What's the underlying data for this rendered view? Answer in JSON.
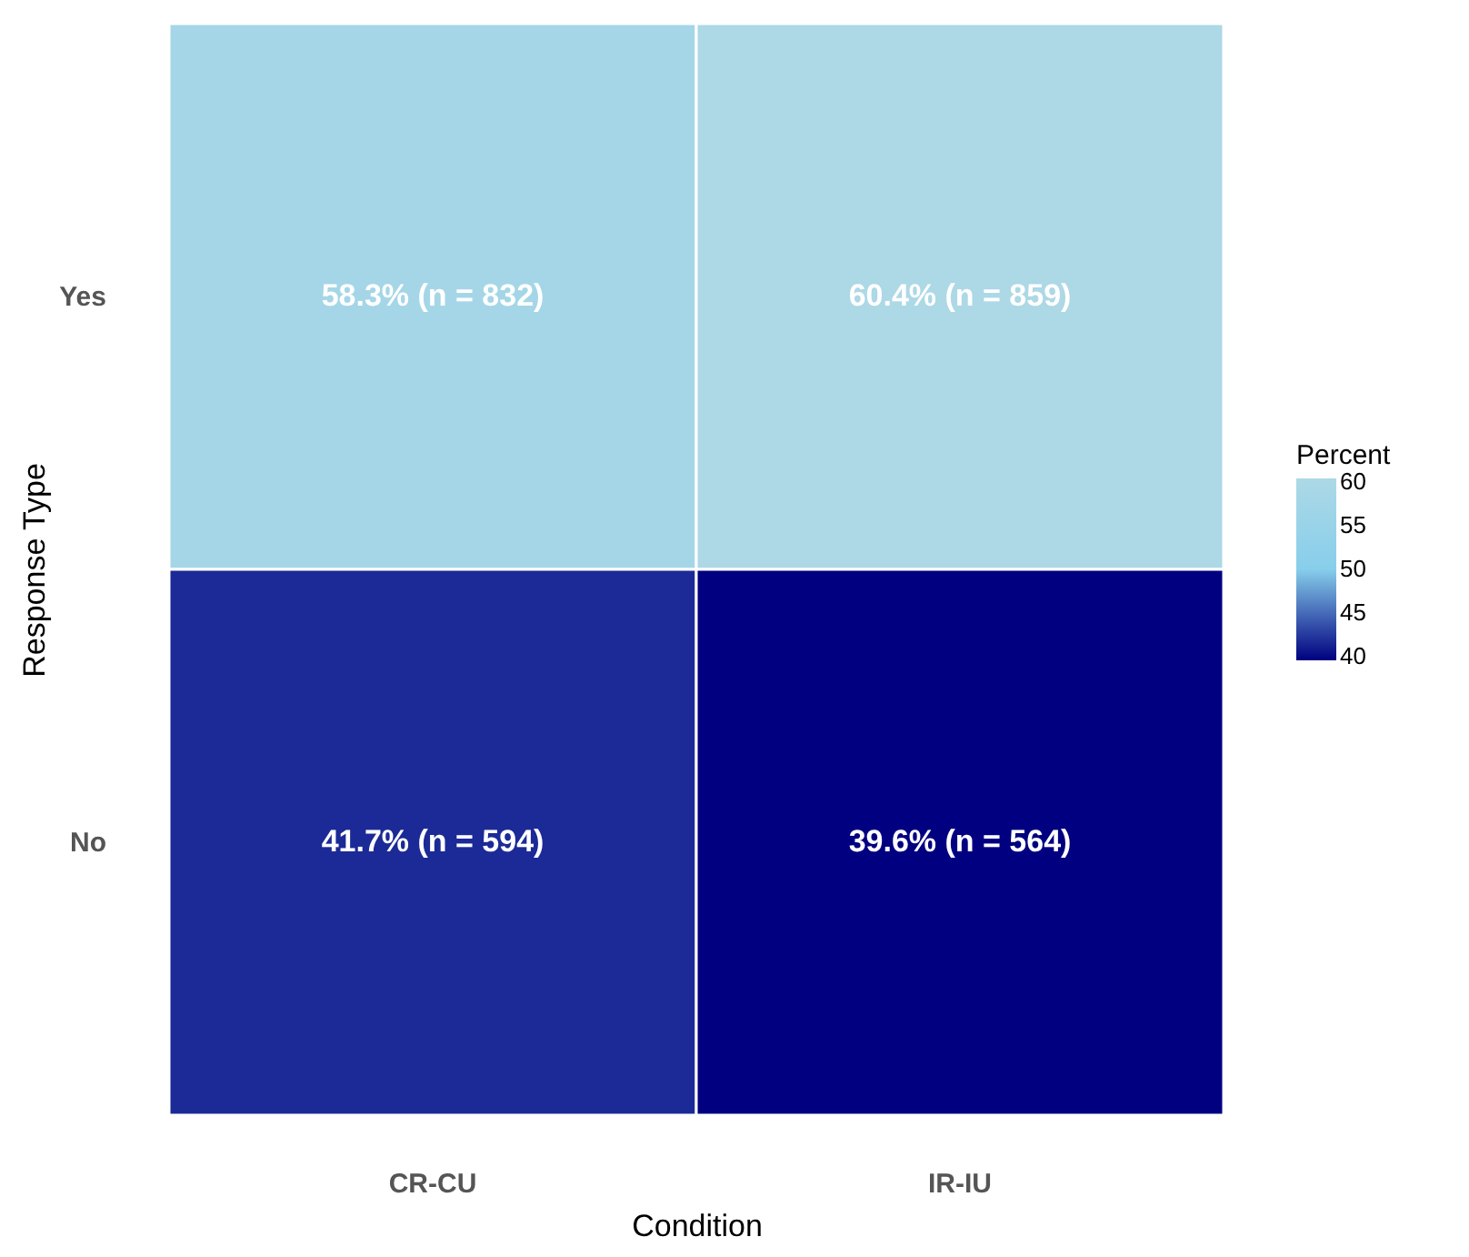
{
  "chart_data": {
    "type": "heatmap",
    "xlabel": "Condition",
    "ylabel": "Response Type",
    "clabel": "Percent",
    "categories": [
      "CR-CU",
      "IR-IU"
    ],
    "y_categories": [
      "Yes",
      "No"
    ],
    "cells": [
      [
        58.3,
        60.4
      ],
      [
        41.7,
        39.6
      ]
    ],
    "cell_labels": [
      [
        "58.3% (n = 832)",
        "60.4% (n = 859)"
      ],
      [
        "41.7% (n = 594)",
        "39.6% (n = 564)"
      ]
    ],
    "clim": [
      39.6,
      60.4
    ],
    "cticks": [
      40,
      45,
      50,
      55,
      60
    ]
  }
}
